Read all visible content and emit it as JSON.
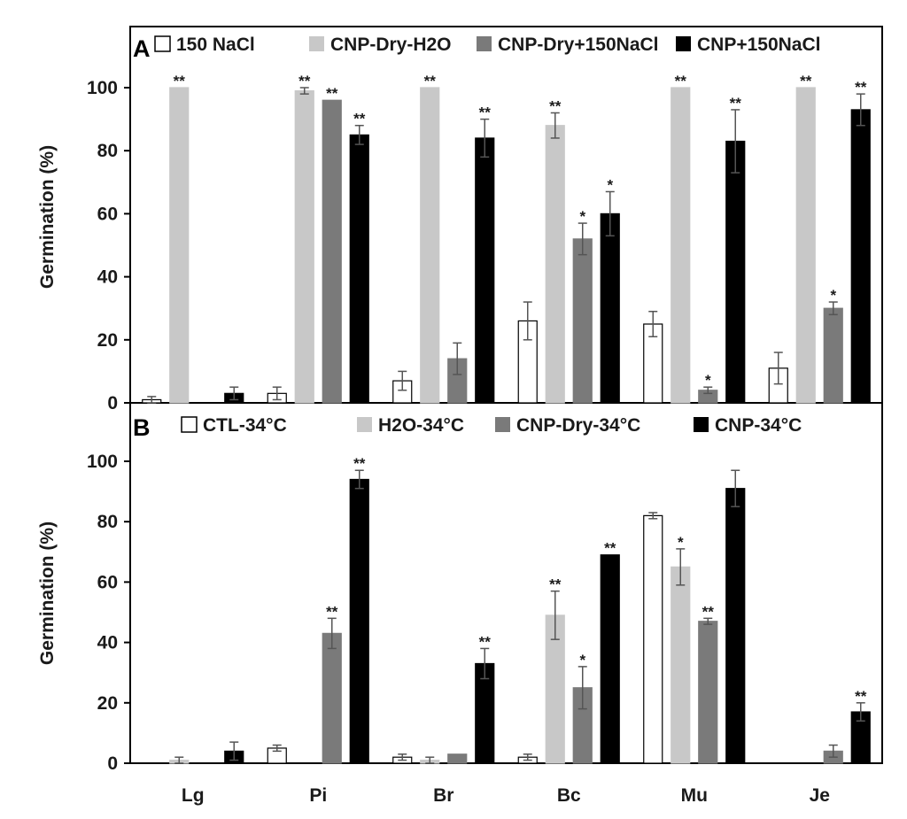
{
  "chart_data": [
    {
      "type": "bar",
      "panel_label": "A",
      "categories": [
        "Lg",
        "Pi",
        "Br",
        "Bc",
        "Mu",
        "Je"
      ],
      "ylabel": "Germination (%)",
      "ylim": [
        0,
        100
      ],
      "yticks": [
        0,
        20,
        40,
        60,
        80,
        100
      ],
      "legend_position": "top",
      "series": [
        {
          "name": "150 NaCl",
          "color": "#ffffff",
          "values": [
            1,
            3,
            7,
            26,
            25,
            11
          ],
          "errors": [
            1,
            2,
            3,
            6,
            4,
            5
          ],
          "sig": [
            "",
            "",
            "",
            "",
            "",
            ""
          ]
        },
        {
          "name": "CNP-Dry-H2O",
          "color": "#c8c8c8",
          "values": [
            100,
            99,
            100,
            88,
            100,
            100
          ],
          "errors": [
            0,
            1,
            0,
            4,
            0,
            0
          ],
          "sig": [
            "**",
            "**",
            "**",
            "**",
            "**",
            "**"
          ]
        },
        {
          "name": "CNP-Dry+150NaCl",
          "color": "#7a7a7a",
          "values": [
            0,
            96,
            14,
            52,
            4,
            30
          ],
          "errors": [
            0,
            0,
            5,
            5,
            1,
            2
          ],
          "sig": [
            "",
            "**",
            "",
            "*",
            "*",
            "*"
          ]
        },
        {
          "name": "CNP+150NaCl",
          "color": "#000000",
          "values": [
            3,
            85,
            84,
            60,
            83,
            93
          ],
          "errors": [
            2,
            3,
            6,
            7,
            10,
            5
          ],
          "sig": [
            "",
            "**",
            "**",
            "*",
            "**",
            "**"
          ]
        }
      ]
    },
    {
      "type": "bar",
      "panel_label": "B",
      "categories": [
        "Lg",
        "Pi",
        "Br",
        "Bc",
        "Mu",
        "Je"
      ],
      "ylabel": "Germination (%)",
      "ylim": [
        0,
        100
      ],
      "yticks": [
        0,
        20,
        40,
        60,
        80,
        100
      ],
      "legend_position": "top",
      "series": [
        {
          "name": "CTL-34°C",
          "color": "#ffffff",
          "values": [
            0,
            5,
            2,
            2,
            82,
            0
          ],
          "errors": [
            0,
            1,
            1,
            1,
            1,
            0
          ],
          "sig": [
            "",
            "",
            "",
            "",
            "",
            ""
          ]
        },
        {
          "name": "H2O-34°C",
          "color": "#c8c8c8",
          "values": [
            1,
            0,
            1,
            49,
            65,
            0
          ],
          "errors": [
            1,
            0,
            1,
            8,
            6,
            0
          ],
          "sig": [
            "",
            "",
            "",
            "**",
            "*",
            ""
          ]
        },
        {
          "name": "CNP-Dry-34°C",
          "color": "#7a7a7a",
          "values": [
            0,
            43,
            3,
            25,
            47,
            4
          ],
          "errors": [
            0,
            5,
            0,
            7,
            1,
            2
          ],
          "sig": [
            "",
            "**",
            "",
            "*",
            "**",
            ""
          ]
        },
        {
          "name": "CNP-34°C",
          "color": "#000000",
          "values": [
            4,
            94,
            33,
            69,
            91,
            17
          ],
          "errors": [
            3,
            3,
            5,
            0,
            6,
            3
          ],
          "sig": [
            "",
            "**",
            "**",
            "**",
            "",
            "**"
          ]
        }
      ]
    }
  ]
}
